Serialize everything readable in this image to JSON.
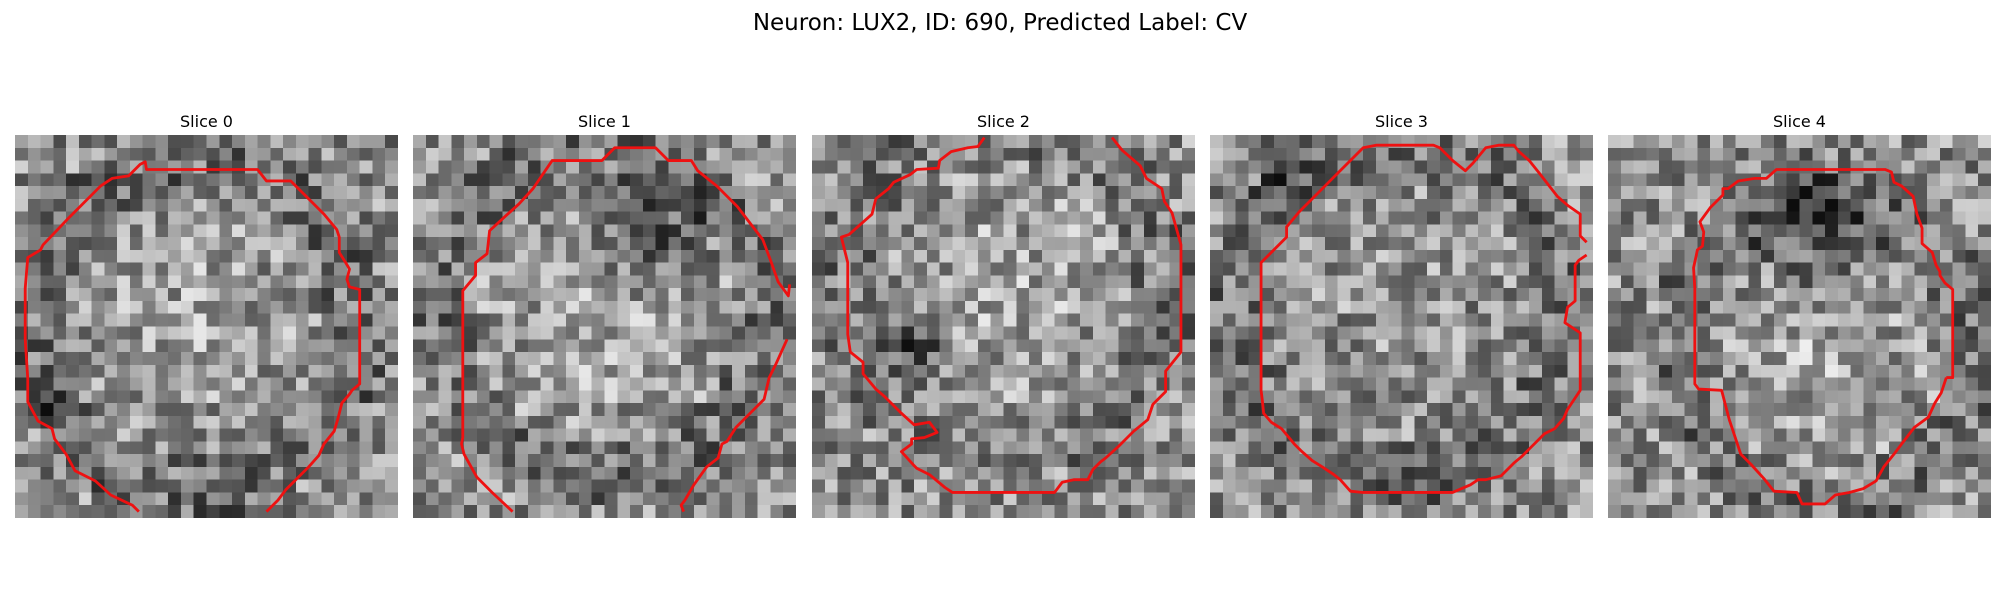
{
  "figure": {
    "title": "Neuron: LUX2, ID: 690, Predicted Label: CV",
    "contour_color": "#ee1111"
  },
  "panels": [
    {
      "title": "Slice 0"
    },
    {
      "title": "Slice 1"
    },
    {
      "title": "Slice 2"
    },
    {
      "title": "Slice 3"
    },
    {
      "title": "Slice 4"
    }
  ]
}
